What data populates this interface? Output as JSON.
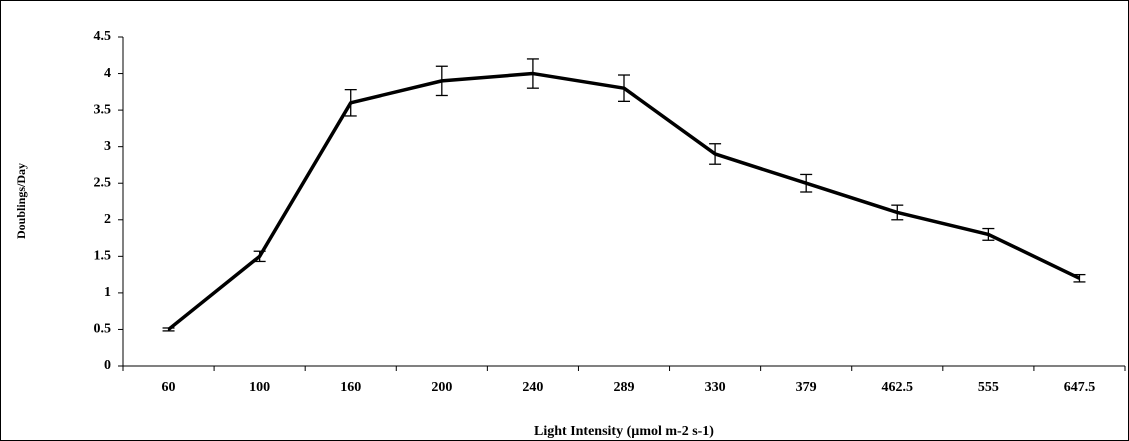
{
  "chart_data": {
    "type": "line",
    "x_label": "Light Intensity (µmol m-2 s-1)",
    "y_label": "Doublings/Day",
    "categories": [
      "60",
      "100",
      "160",
      "200",
      "240",
      "289",
      "330",
      "379",
      "462.5",
      "555",
      "647.5"
    ],
    "values": [
      0.5,
      1.5,
      3.6,
      3.9,
      4.0,
      3.8,
      2.9,
      2.5,
      2.1,
      1.8,
      1.2
    ],
    "errors": [
      0.02,
      0.07,
      0.18,
      0.2,
      0.2,
      0.18,
      0.14,
      0.12,
      0.1,
      0.08,
      0.05
    ],
    "color": "#000000",
    "ylim": [
      0,
      4.5
    ],
    "yticks": [
      0,
      0.5,
      1,
      1.5,
      2,
      2.5,
      3,
      3.5,
      4,
      4.5
    ]
  }
}
